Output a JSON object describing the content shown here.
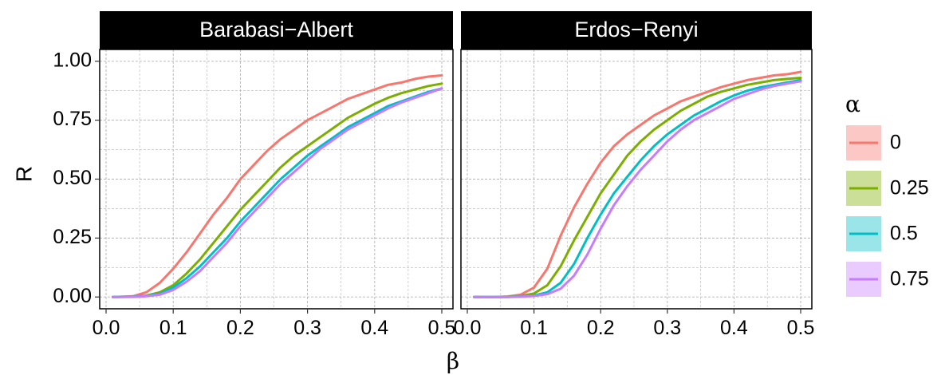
{
  "chart_data": {
    "type": "line",
    "xlabel": "β",
    "ylabel": "R",
    "xlim": [
      0.0,
      0.5
    ],
    "ylim": [
      0.0,
      1.0
    ],
    "x_ticks": [
      "0.0",
      "0.1",
      "0.2",
      "0.3",
      "0.4",
      "0.5"
    ],
    "y_ticks": [
      "0.00",
      "0.25",
      "0.50",
      "0.75",
      "1.00"
    ],
    "grid": true,
    "legend": {
      "title": "α",
      "placement": "right",
      "entries": [
        "0",
        "0.25",
        "0.5",
        "0.75"
      ]
    },
    "colors": {
      "0": "#F8766D",
      "0.25": "#7CAE00",
      "0.5": "#00BFC4",
      "0.75": "#C77CFF",
      "strip": "#000000",
      "grid": "#b3b3b3"
    },
    "panels": [
      {
        "title": "Barabasi−Albert",
        "x": [
          0.01,
          0.04,
          0.06,
          0.08,
          0.1,
          0.12,
          0.14,
          0.16,
          0.18,
          0.2,
          0.22,
          0.24,
          0.26,
          0.28,
          0.3,
          0.32,
          0.34,
          0.36,
          0.38,
          0.4,
          0.42,
          0.44,
          0.46,
          0.48,
          0.5
        ],
        "series": [
          {
            "name": "0",
            "values": [
              0.0,
              0.003,
              0.02,
              0.06,
              0.12,
              0.19,
              0.27,
              0.35,
              0.42,
              0.5,
              0.56,
              0.62,
              0.67,
              0.71,
              0.75,
              0.78,
              0.81,
              0.84,
              0.86,
              0.88,
              0.9,
              0.91,
              0.925,
              0.935,
              0.94
            ]
          },
          {
            "name": "0.25",
            "values": [
              0.0,
              0.001,
              0.006,
              0.02,
              0.05,
              0.1,
              0.16,
              0.23,
              0.3,
              0.37,
              0.43,
              0.49,
              0.55,
              0.6,
              0.64,
              0.68,
              0.72,
              0.76,
              0.79,
              0.82,
              0.845,
              0.865,
              0.88,
              0.895,
              0.905
            ]
          },
          {
            "name": "0.5",
            "values": [
              0.0,
              0.001,
              0.004,
              0.014,
              0.04,
              0.08,
              0.13,
              0.19,
              0.25,
              0.32,
              0.38,
              0.44,
              0.5,
              0.55,
              0.6,
              0.64,
              0.68,
              0.72,
              0.75,
              0.78,
              0.81,
              0.83,
              0.85,
              0.87,
              0.885
            ]
          },
          {
            "name": "0.75",
            "values": [
              0.0,
              0.0005,
              0.003,
              0.01,
              0.03,
              0.065,
              0.11,
              0.17,
              0.23,
              0.3,
              0.36,
              0.42,
              0.48,
              0.53,
              0.58,
              0.63,
              0.67,
              0.71,
              0.74,
              0.77,
              0.8,
              0.825,
              0.845,
              0.865,
              0.885
            ]
          }
        ]
      },
      {
        "title": "Erdos−Renyi",
        "x": [
          0.01,
          0.04,
          0.06,
          0.08,
          0.1,
          0.12,
          0.14,
          0.16,
          0.18,
          0.2,
          0.22,
          0.24,
          0.26,
          0.28,
          0.3,
          0.32,
          0.34,
          0.36,
          0.38,
          0.4,
          0.42,
          0.44,
          0.46,
          0.48,
          0.5
        ],
        "series": [
          {
            "name": "0",
            "values": [
              0.0,
              0.0,
              0.002,
              0.01,
              0.04,
              0.12,
              0.26,
              0.38,
              0.48,
              0.57,
              0.64,
              0.69,
              0.73,
              0.77,
              0.8,
              0.83,
              0.85,
              0.87,
              0.89,
              0.905,
              0.92,
              0.93,
              0.94,
              0.945,
              0.955
            ]
          },
          {
            "name": "0.25",
            "values": [
              0.0,
              0.0,
              0.001,
              0.004,
              0.015,
              0.05,
              0.13,
              0.24,
              0.34,
              0.44,
              0.52,
              0.6,
              0.66,
              0.71,
              0.75,
              0.79,
              0.82,
              0.85,
              0.87,
              0.885,
              0.9,
              0.91,
              0.92,
              0.925,
              0.93
            ]
          },
          {
            "name": "0.5",
            "values": [
              0.0,
              0.0,
              0.0,
              0.002,
              0.006,
              0.02,
              0.06,
              0.14,
              0.25,
              0.35,
              0.44,
              0.51,
              0.58,
              0.64,
              0.69,
              0.73,
              0.77,
              0.8,
              0.83,
              0.855,
              0.875,
              0.89,
              0.9,
              0.91,
              0.92
            ]
          },
          {
            "name": "0.75",
            "values": [
              0.0,
              0.0,
              0.0,
              0.001,
              0.004,
              0.012,
              0.035,
              0.09,
              0.18,
              0.29,
              0.39,
              0.47,
              0.54,
              0.6,
              0.66,
              0.71,
              0.75,
              0.78,
              0.81,
              0.84,
              0.86,
              0.88,
              0.895,
              0.905,
              0.915
            ]
          }
        ]
      }
    ]
  }
}
